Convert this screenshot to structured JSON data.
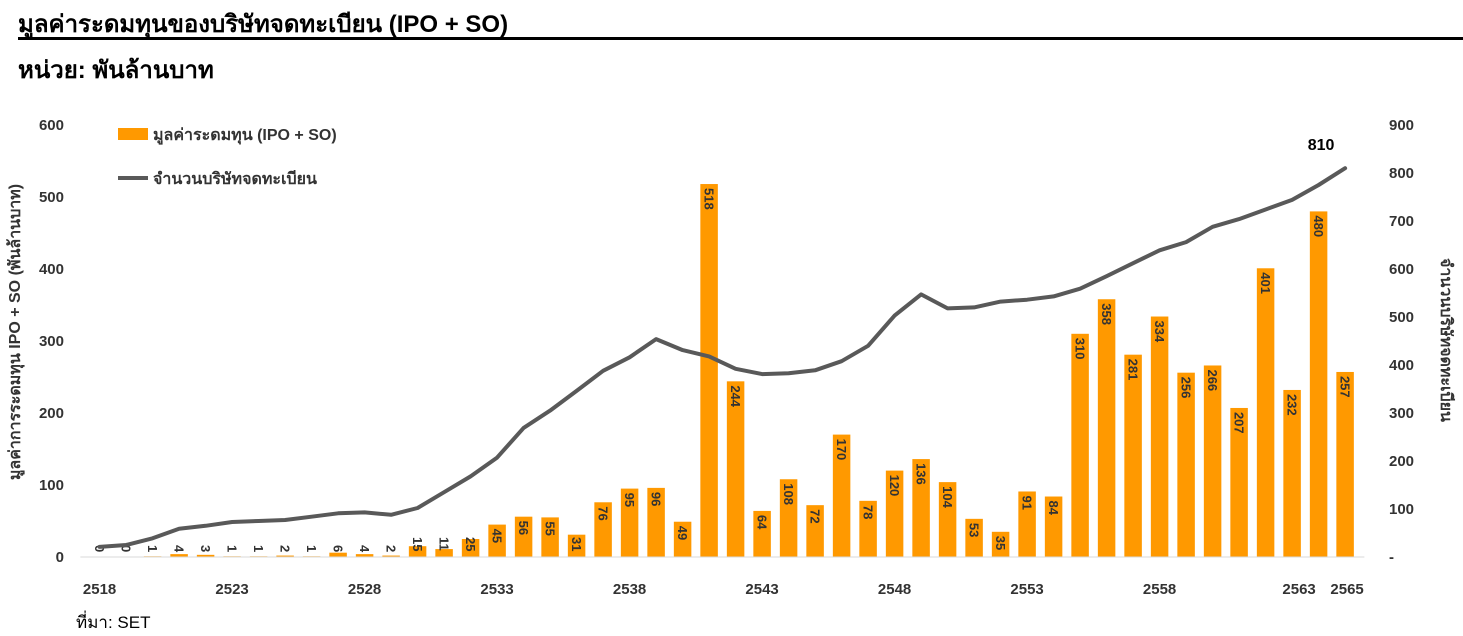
{
  "header": {
    "title": "มูลค่าระดมทุนของบริษัทจดทะเบียน (IPO + SO)",
    "subtitle": "หน่วย: พันล้านบาท"
  },
  "footer": {
    "source": "ที่มา: SET"
  },
  "colors": {
    "bar": "#FF9900",
    "line": "#595959"
  },
  "chart_data": {
    "type": "bar",
    "categories": [
      2518,
      2519,
      2520,
      2521,
      2522,
      2523,
      2524,
      2525,
      2526,
      2527,
      2528,
      2529,
      2530,
      2531,
      2532,
      2533,
      2534,
      2535,
      2536,
      2537,
      2538,
      2539,
      2540,
      2541,
      2542,
      2543,
      2544,
      2545,
      2546,
      2547,
      2548,
      2549,
      2550,
      2551,
      2552,
      2553,
      2554,
      2555,
      2556,
      2557,
      2558,
      2559,
      2560,
      2561,
      2562,
      2563,
      2564,
      2565
    ],
    "xtick_labels": [
      {
        "x": 2518,
        "label": "2518"
      },
      {
        "x": 2523,
        "label": "2523"
      },
      {
        "x": 2528,
        "label": "2528"
      },
      {
        "x": 2533,
        "label": "2533"
      },
      {
        "x": 2538,
        "label": "2538"
      },
      {
        "x": 2543,
        "label": "2543"
      },
      {
        "x": 2548,
        "label": "2548"
      },
      {
        "x": 2553,
        "label": "2553"
      },
      {
        "x": 2558,
        "label": "2558"
      },
      {
        "x": 2563,
        "label": "2563"
      },
      {
        "x": 2565,
        "label": "2565"
      }
    ],
    "series": [
      {
        "name": "มูลค่าระดมทุน (IPO + SO)",
        "type": "bar",
        "axis": "left",
        "values": [
          0,
          0,
          1,
          4,
          3,
          1,
          1,
          2,
          1,
          6,
          4,
          2,
          15,
          11,
          25,
          45,
          56,
          55,
          31,
          76,
          95,
          96,
          49,
          518,
          244,
          64,
          108,
          72,
          170,
          78,
          120,
          136,
          104,
          53,
          35,
          91,
          84,
          310,
          358,
          281,
          334,
          256,
          266,
          207,
          401,
          232,
          480,
          257
        ],
        "labels": [
          "0",
          "0",
          "1",
          "4",
          "3",
          "1",
          "1",
          "2",
          "1",
          "6",
          "4",
          "2",
          "15",
          "11",
          "25",
          "45",
          "56",
          "55",
          "31",
          "76",
          "95",
          "96",
          "49",
          "518",
          "244",
          "64",
          "108",
          "72",
          "170",
          "78",
          "120",
          "136",
          "104",
          "53",
          "35",
          "91",
          "84",
          "310",
          "358",
          "281",
          "334",
          "256",
          "266",
          "207",
          "401",
          "232",
          "480",
          "257"
        ]
      },
      {
        "name": "จำนวนบริษัทจดทะเบียน",
        "type": "line",
        "axis": "right",
        "values": [
          21,
          25,
          39,
          59,
          65,
          73,
          75,
          77,
          84,
          91,
          93,
          88,
          102,
          135,
          168,
          207,
          269,
          305,
          346,
          388,
          416,
          454,
          431,
          418,
          392,
          381,
          383,
          389,
          408,
          440,
          503,
          547,
          518,
          520,
          532,
          536,
          543,
          559,
          585,
          612,
          639,
          656,
          688,
          704,
          724,
          744,
          775,
          810
        ],
        "end_label": "810"
      }
    ],
    "yleft": {
      "label": "มูลค่าการระดมทุน IPO + SO (พันล้านบาท)",
      "lim": [
        0,
        600
      ],
      "ticks": [
        0,
        100,
        200,
        300,
        400,
        500,
        600
      ]
    },
    "yright": {
      "label": "จำนวนบริษัทจดทะเบียน",
      "lim": [
        0,
        900
      ],
      "ticks": [
        0,
        100,
        200,
        300,
        400,
        500,
        600,
        700,
        800,
        900
      ],
      "tick_labels": [
        "-",
        "100",
        "200",
        "300",
        "400",
        "500",
        "600",
        "700",
        "800",
        "900"
      ]
    },
    "legend": {
      "position": "top-left"
    },
    "grid": false
  }
}
